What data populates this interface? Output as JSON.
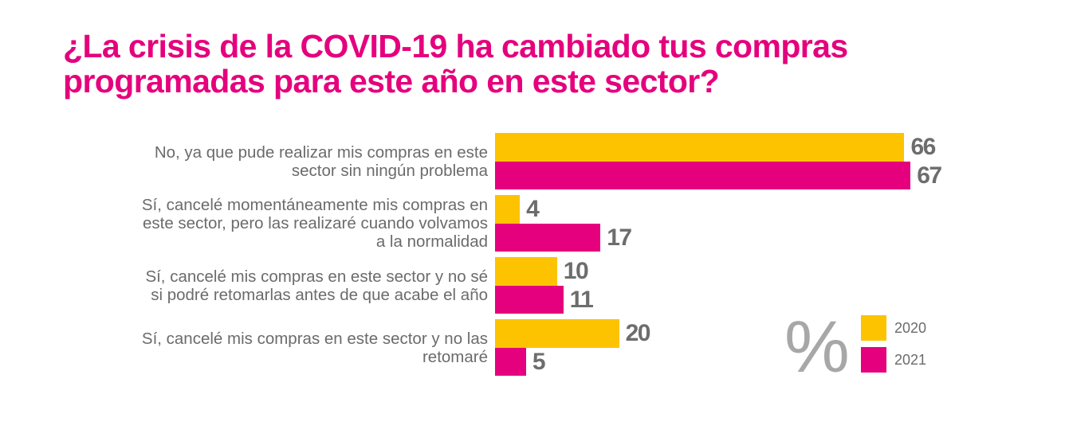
{
  "chart_data": {
    "type": "bar",
    "orientation": "horizontal",
    "title": "¿La crisis de la COVID-19 ha cambiado tus compras programadas para este año en este sector?",
    "unit_label": "%",
    "categories": [
      "No, ya que pude realizar mis compras en este sector sin ningún problema",
      "Sí, cancelé momentáneamente mis compras en este sector, pero las realizaré cuando volvamos a la normalidad",
      "Sí, cancelé mis compras en este sector y no sé si podré retomarlas antes de que acabe el año",
      "Sí, cancelé mis compras en este sector y no las retomaré"
    ],
    "category_lines": [
      [
        "No, ya que pude realizar mis compras en este",
        "sector sin ningún problema"
      ],
      [
        "Sí, cancelé momentáneamente mis compras en",
        "este sector, pero las realizaré cuando volvamos",
        "a la normalidad"
      ],
      [
        "Sí, cancelé mis compras en este sector y no sé",
        "si podré retomarlas antes de que acabe el año"
      ],
      [
        "Sí, cancelé mis compras en este sector y no las",
        "retomaré"
      ]
    ],
    "series": [
      {
        "name": "2020",
        "color": "#fdc300",
        "values": [
          66,
          4,
          10,
          20
        ]
      },
      {
        "name": "2021",
        "color": "#e5007d",
        "values": [
          67,
          17,
          11,
          5
        ]
      }
    ],
    "xlim": [
      0,
      100
    ],
    "grid": false,
    "legend": "bottom-right",
    "xlabel": "",
    "ylabel": ""
  },
  "colors": {
    "title": "#e5007d",
    "text": "#6b6b6b",
    "value": "#6d6d6d",
    "percent_symbol": "#a7a7a7"
  }
}
